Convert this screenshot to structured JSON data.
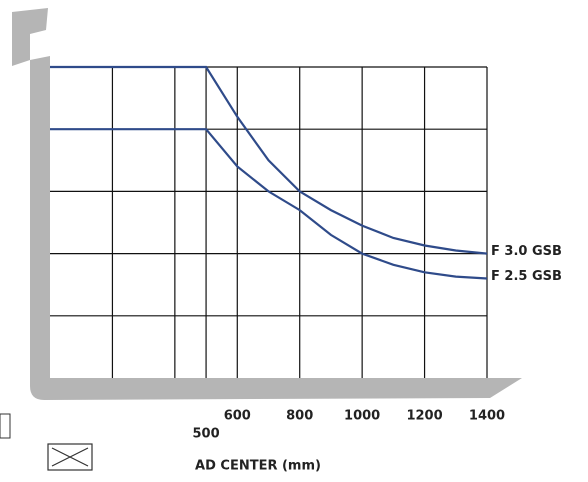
{
  "chart_data": {
    "type": "line",
    "x_label": "AD CENTER (mm)",
    "x": [
      0,
      500,
      600,
      700,
      800,
      900,
      1000,
      1100,
      1200,
      1300,
      1400
    ],
    "series": [
      {
        "name": "F 3.0 GSB",
        "color": "#2f4b8a",
        "values": [
          5,
          5,
          4.2,
          3.5,
          3.0,
          2.7,
          2.45,
          2.25,
          2.13,
          2.05,
          2.0
        ]
      },
      {
        "name": "F 2.5 GSB",
        "color": "#2f4b8a",
        "values": [
          4,
          4,
          3.4,
          3.0,
          2.7,
          2.3,
          2.0,
          1.82,
          1.7,
          1.63,
          1.6
        ]
      }
    ],
    "xlim": [
      0,
      1400
    ],
    "ylim": [
      0,
      5
    ],
    "xticks": [
      500,
      600,
      800,
      1000,
      1200,
      1400
    ],
    "xgrid": [
      200,
      400
    ],
    "ygrid": [
      1,
      2,
      3,
      4,
      5
    ],
    "grid": true
  }
}
